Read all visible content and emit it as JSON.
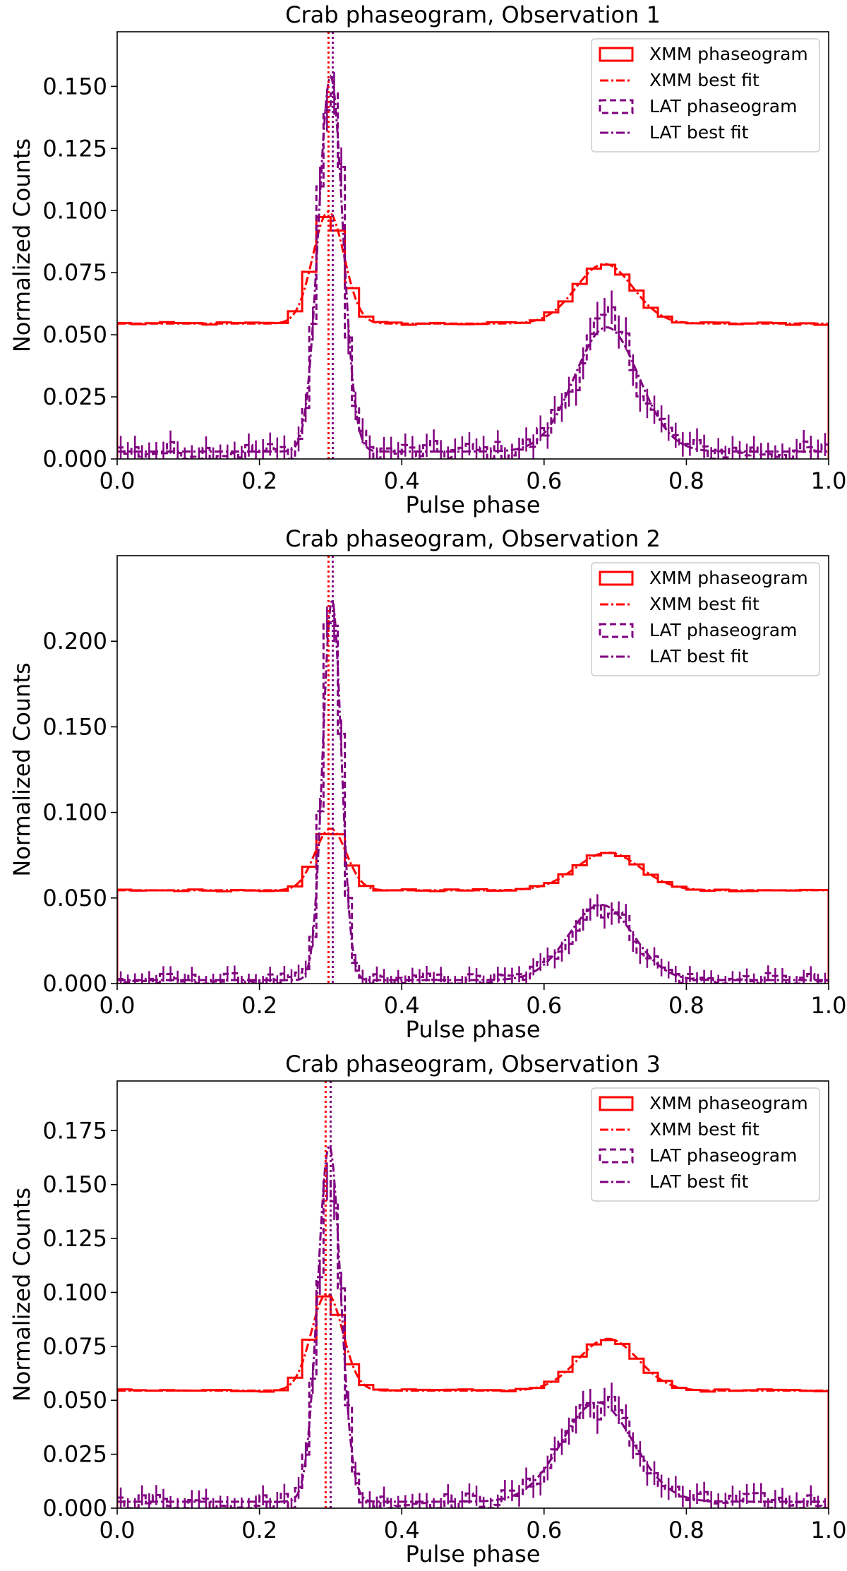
{
  "figure": {
    "xmm_color": "#ff0000",
    "lat_color": "#800080",
    "background": "#ffffff"
  },
  "chart_data": [
    {
      "type": "line",
      "title": "Crab phaseogram, Observation 1",
      "xlabel": "Pulse phase",
      "ylabel": "Normalized Counts",
      "xlim": [
        0,
        1
      ],
      "ylim": [
        0,
        0.172
      ],
      "xticks": [
        0.0,
        0.2,
        0.4,
        0.6,
        0.8,
        1.0
      ],
      "xtick_labels": [
        "0.0",
        "0.2",
        "0.4",
        "0.6",
        "0.8",
        "1.0"
      ],
      "yticks": [
        0.0,
        0.025,
        0.05,
        0.075,
        0.1,
        0.125,
        0.15
      ],
      "ytick_labels": [
        "0.000",
        "0.025",
        "0.050",
        "0.075",
        "0.100",
        "0.125",
        "0.150"
      ],
      "grid": false,
      "legend_position": "top-right",
      "vlines": [
        0.297,
        0.303
      ],
      "xmm_params": {
        "base": 0.0545,
        "peaks": [
          [
            0.297,
            0.045,
            0.022
          ],
          [
            0.685,
            0.024,
            0.04
          ]
        ]
      },
      "lat_params": {
        "base": 0.003,
        "peaks": [
          [
            0.3,
            0.151,
            0.017
          ],
          [
            0.688,
            0.05,
            0.045
          ]
        ]
      },
      "series": [
        {
          "name": "XMM phaseogram",
          "style": "steps-solid",
          "color": "#ff0000"
        },
        {
          "name": "XMM best fit",
          "style": "dashdot",
          "color": "#ff0000"
        },
        {
          "name": "LAT phaseogram",
          "style": "steps-dashed-errorbars",
          "color": "#800080"
        },
        {
          "name": "LAT best fit",
          "style": "dashdot",
          "color": "#800080"
        }
      ]
    },
    {
      "type": "line",
      "title": "Crab phaseogram, Observation 2",
      "xlabel": "Pulse phase",
      "ylabel": "Normalized Counts",
      "xlim": [
        0,
        1
      ],
      "ylim": [
        0,
        0.25
      ],
      "xticks": [
        0.0,
        0.2,
        0.4,
        0.6,
        0.8,
        1.0
      ],
      "xtick_labels": [
        "0.0",
        "0.2",
        "0.4",
        "0.6",
        "0.8",
        "1.0"
      ],
      "yticks": [
        0.0,
        0.05,
        0.1,
        0.15,
        0.2
      ],
      "ytick_labels": [
        "0.000",
        "0.050",
        "0.100",
        "0.150",
        "0.200"
      ],
      "grid": false,
      "legend_position": "top-right",
      "vlines": [
        0.297,
        0.303
      ],
      "xmm_params": {
        "base": 0.0545,
        "peaks": [
          [
            0.3,
            0.036,
            0.022
          ],
          [
            0.69,
            0.022,
            0.045
          ]
        ]
      },
      "lat_params": {
        "base": 0.002,
        "peaks": [
          [
            0.302,
            0.222,
            0.013
          ],
          [
            0.68,
            0.044,
            0.045
          ]
        ]
      },
      "series": [
        {
          "name": "XMM phaseogram",
          "style": "steps-solid",
          "color": "#ff0000"
        },
        {
          "name": "XMM best fit",
          "style": "dashdot",
          "color": "#ff0000"
        },
        {
          "name": "LAT phaseogram",
          "style": "steps-dashed-errorbars",
          "color": "#800080"
        },
        {
          "name": "LAT best fit",
          "style": "dashdot",
          "color": "#800080"
        }
      ]
    },
    {
      "type": "line",
      "title": "Crab phaseogram, Observation 3",
      "xlabel": "Pulse phase",
      "ylabel": "Normalized Counts",
      "xlim": [
        0,
        1
      ],
      "ylim": [
        0,
        0.198
      ],
      "xticks": [
        0.0,
        0.2,
        0.4,
        0.6,
        0.8,
        1.0
      ],
      "xtick_labels": [
        "0.0",
        "0.2",
        "0.4",
        "0.6",
        "0.8",
        "1.0"
      ],
      "yticks": [
        0.0,
        0.025,
        0.05,
        0.075,
        0.1,
        0.125,
        0.15,
        0.175
      ],
      "ytick_labels": [
        "0.000",
        "0.025",
        "0.050",
        "0.075",
        "0.100",
        "0.125",
        "0.150",
        "0.175"
      ],
      "grid": false,
      "legend_position": "top-right",
      "vlines": [
        0.293,
        0.3
      ],
      "xmm_params": {
        "base": 0.0545,
        "peaks": [
          [
            0.295,
            0.045,
            0.022
          ],
          [
            0.69,
            0.024,
            0.042
          ]
        ]
      },
      "lat_params": {
        "base": 0.003,
        "peaks": [
          [
            0.298,
            0.165,
            0.016
          ],
          [
            0.675,
            0.046,
            0.05
          ]
        ]
      },
      "series": [
        {
          "name": "XMM phaseogram",
          "style": "steps-solid",
          "color": "#ff0000"
        },
        {
          "name": "XMM best fit",
          "style": "dashdot",
          "color": "#ff0000"
        },
        {
          "name": "LAT phaseogram",
          "style": "steps-dashed-errorbars",
          "color": "#800080"
        },
        {
          "name": "LAT best fit",
          "style": "dashdot",
          "color": "#800080"
        }
      ]
    }
  ]
}
